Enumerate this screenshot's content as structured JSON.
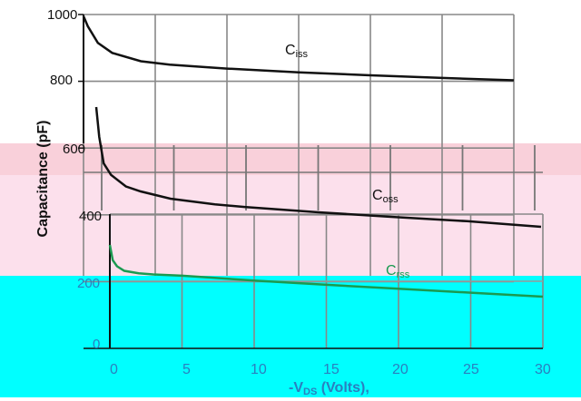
{
  "chart_data": {
    "type": "line",
    "ylabel": "Capacitance (pF)",
    "xlabel_prefix": "-V",
    "xlabel_sub": "DS",
    "xlabel_suffix": " (Volts),",
    "yticks": [
      "1000",
      "800",
      "600",
      "400",
      "200",
      "0"
    ],
    "xticks": [
      "0",
      "5",
      "10",
      "15",
      "20",
      "25",
      "30"
    ],
    "xlim": [
      0,
      30
    ],
    "ylim": [
      0,
      1000
    ],
    "grid": true,
    "series": [
      {
        "name": "Ciss",
        "name_main": "C",
        "name_sub": "iss",
        "color": "#111111",
        "x": [
          0,
          0.3,
          1,
          2,
          4,
          6,
          10,
          15,
          20,
          25,
          30
        ],
        "y": [
          995,
          965,
          915,
          885,
          860,
          850,
          838,
          827,
          818,
          810,
          803
        ]
      },
      {
        "name": "Coss",
        "name_main": "C",
        "name_sub": "oss",
        "color": "#111111",
        "x": [
          0,
          0.2,
          0.5,
          1,
          2,
          3,
          5,
          8,
          10,
          15,
          20,
          25,
          30
        ],
        "y": [
          730,
          640,
          560,
          525,
          490,
          475,
          453,
          436,
          428,
          412,
          398,
          385,
          368
        ],
        "band": "pink"
      },
      {
        "name": "Crss",
        "name_main": "C",
        "name_sub": "rss",
        "color": "#1a9a50",
        "x": [
          0,
          0.2,
          0.5,
          1,
          2,
          3,
          5,
          10,
          15,
          20,
          25,
          30
        ],
        "y": [
          325,
          275,
          255,
          240,
          232,
          228,
          224,
          208,
          194,
          181,
          168,
          155
        ],
        "band": "cyan"
      }
    ],
    "bands": [
      {
        "name": "pink",
        "color": "#fce0ec"
      },
      {
        "name": "cyan",
        "color": "#00ffff"
      }
    ]
  }
}
